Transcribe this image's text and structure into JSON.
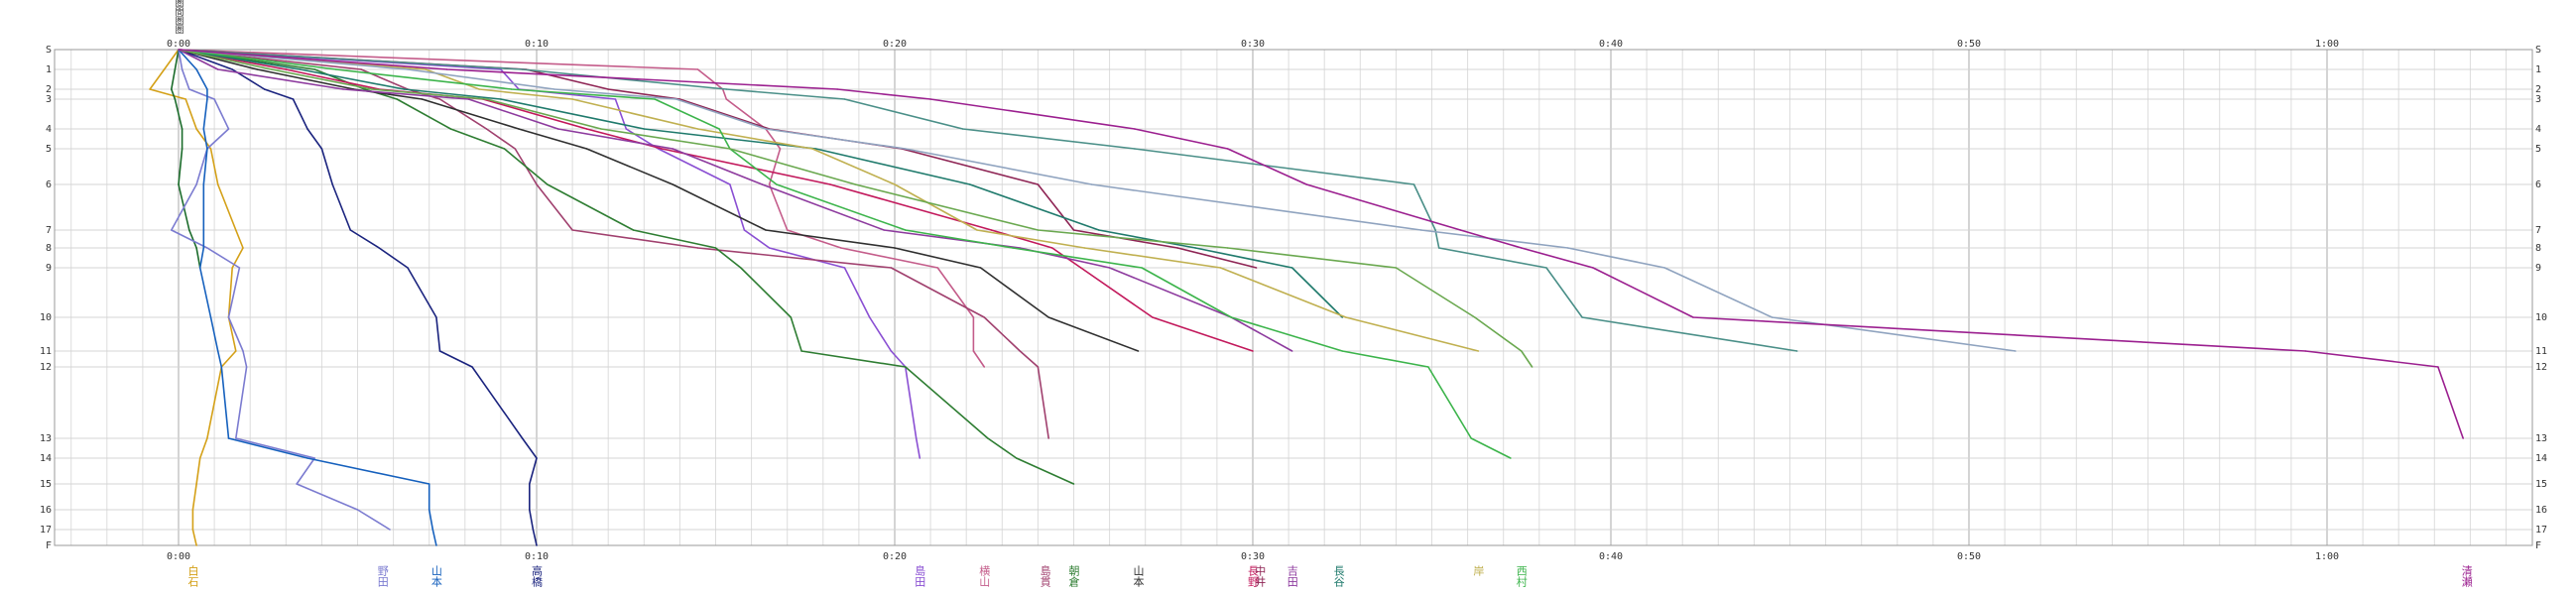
{
  "top_legend": [
    "圏",
    "間",
    "圏",
    "圏"
  ],
  "chart_data": {
    "type": "line",
    "title": "",
    "xlabel": "",
    "ylabel": "",
    "x_unit": "elapsed minutes",
    "xlim": [
      0,
      66
    ],
    "x_ticks": [
      {
        "value": 0,
        "label": "0:00"
      },
      {
        "value": 10,
        "label": "0:10"
      },
      {
        "value": 20,
        "label": "0:20"
      },
      {
        "value": 30,
        "label": "0:30"
      },
      {
        "value": 40,
        "label": "0:40"
      },
      {
        "value": 50,
        "label": "0:50"
      },
      {
        "value": 60,
        "label": "1:00"
      }
    ],
    "y_ticks": [
      "S",
      "1",
      "2",
      "3",
      "4",
      "5",
      "6",
      "7",
      "8",
      "9",
      "10",
      "11",
      "12",
      "13",
      "14",
      "15",
      "16",
      "17",
      "F"
    ],
    "y_tick_positions": [
      0,
      1,
      2,
      2.5,
      4,
      5,
      6.8,
      9.1,
      10,
      11,
      13.5,
      15.2,
      16,
      19.6,
      20.6,
      21.9,
      23.2,
      24.2,
      25
    ],
    "grid": true,
    "series": [
      {
        "name": "白石",
        "color": "#d4a017",
        "x": [
          0,
          -0.4,
          -0.8,
          0.2,
          0.5,
          0.9,
          1.1,
          1.6,
          1.8,
          1.5,
          1.4,
          1.6,
          1.2,
          0.8,
          0.6,
          0.5,
          0.4,
          0.4,
          0.5
        ]
      },
      {
        "name": "",
        "color": "#1a6b2a",
        "x": [
          0,
          -0.1,
          -0.2,
          -0.1,
          0.1,
          0.1,
          0.0,
          0.3,
          0.5,
          0.6
        ]
      },
      {
        "name": "野田",
        "color": "#7b7bd0",
        "x": [
          0,
          0.1,
          0.3,
          1.0,
          1.4,
          0.8,
          0.5,
          -0.2,
          0.8,
          1.7,
          1.4,
          1.8,
          1.9,
          1.6,
          3.8,
          3.3,
          5.0,
          5.9
        ]
      },
      {
        "name": "山本",
        "color": "#1560bd",
        "x": [
          0,
          0.5,
          0.8,
          0.8,
          0.7,
          0.8,
          0.7,
          0.7,
          0.7,
          0.6,
          0.9,
          1.1,
          1.2,
          1.4,
          3.6,
          7.0,
          7.0,
          7.1,
          7.2
        ]
      },
      {
        "name": "高橋",
        "color": "#1a237e",
        "x": [
          0,
          1.5,
          2.4,
          3.2,
          3.6,
          4.0,
          4.3,
          4.8,
          5.6,
          6.4,
          7.2,
          7.3,
          8.2,
          9.6,
          10.0,
          9.8,
          9.8,
          9.9,
          10.0
        ]
      },
      {
        "name": "島田",
        "color": "#8a4fd3",
        "x": [
          0,
          9.0,
          9.5,
          12.2,
          12.5,
          13.4,
          15.4,
          15.8,
          16.5,
          18.6,
          19.3,
          19.9,
          20.3,
          20.6,
          20.7
        ]
      },
      {
        "name": "横山",
        "color": "#c45c8a",
        "x": [
          0,
          14.5,
          15.2,
          15.3,
          16.4,
          16.8,
          16.5,
          17.0,
          18.5,
          21.2,
          22.2,
          22.2,
          22.5
        ]
      },
      {
        "name": "島貫",
        "color": "#a0406e",
        "x": [
          0,
          5.1,
          6.4,
          7.3,
          8.6,
          9.4,
          10.0,
          11.0,
          14.5,
          19.9,
          22.5,
          23.5,
          24.0,
          24.3
        ]
      },
      {
        "name": "朝倉",
        "color": "#2e7d32",
        "x": [
          0,
          3.8,
          5.2,
          6.1,
          7.6,
          9.1,
          10.3,
          12.7,
          15.0,
          15.7,
          17.1,
          17.4,
          20.3,
          22.6,
          23.4,
          25.0
        ]
      },
      {
        "name": "山本",
        "color": "#2f2f2f",
        "x": [
          0,
          2.2,
          4.9,
          6.8,
          9.5,
          11.4,
          13.8,
          16.4,
          20.0,
          22.4,
          24.3,
          26.8
        ]
      },
      {
        "name": "中井",
        "color": "#8e2454",
        "x": [
          0,
          9.7,
          12.0,
          14.0,
          16.5,
          20.2,
          24.0,
          25.0,
          27.9,
          30.1
        ]
      },
      {
        "name": "長野",
        "color": "#c2185b",
        "x": [
          0,
          3.0,
          5.6,
          8.5,
          11.4,
          13.5,
          18.2,
          22.7,
          24.4,
          25.2,
          27.2,
          30.0
        ]
      },
      {
        "name": "吉田",
        "color": "#8d3a9e",
        "x": [
          0,
          1.1,
          4.6,
          8.1,
          10.6,
          13.8,
          16.3,
          19.7,
          23.5,
          26.0,
          29.4,
          31.1
        ]
      },
      {
        "name": "長谷",
        "color": "#1f7a6c",
        "x": [
          0,
          3.4,
          6.3,
          9.0,
          13.0,
          17.8,
          22.1,
          25.7,
          28.4,
          31.1,
          32.5
        ]
      },
      {
        "name": "岸",
        "color": "#c0b050",
        "x": [
          0,
          6.9,
          8.4,
          11.0,
          14.5,
          17.7,
          20.0,
          22.3,
          25.3,
          29.1,
          32.6,
          36.3
        ]
      },
      {
        "name": "西村",
        "color": "#3cb44b",
        "x": [
          0,
          4.4,
          9.3,
          13.3,
          15.1,
          15.4,
          16.7,
          20.3,
          23.3,
          26.9,
          29.4,
          32.5,
          34.9,
          36.1,
          37.2
        ]
      },
      {
        "name": "",
        "color": "#6aa84f",
        "x": [
          0,
          2.6,
          5.4,
          8.6,
          11.8,
          15.4,
          18.9,
          24.0,
          29.3,
          34.0,
          36.2,
          37.5,
          37.8
        ]
      },
      {
        "name": "",
        "color": "#4a8f88",
        "x": [
          0,
          9.6,
          15.3,
          18.6,
          21.9,
          26.7,
          34.5,
          35.1,
          35.2,
          38.2,
          39.2,
          45.2
        ]
      },
      {
        "name": "",
        "color": "#8fa3bf",
        "x": [
          0,
          6.4,
          10.5,
          13.9,
          16.4,
          20.3,
          25.5,
          34.7,
          38.8,
          41.5,
          44.5,
          51.3
        ]
      },
      {
        "name": "清瀬",
        "color": "#9b1f8f",
        "x": [
          0,
          7.5,
          18.4,
          21.0,
          26.7,
          29.3,
          31.5,
          35.8,
          37.5,
          39.5,
          42.3,
          59.4,
          63.1,
          63.8
        ]
      }
    ],
    "bottom_labels": [
      {
        "x": 0.4,
        "text": "白石",
        "color": "#d4a017"
      },
      {
        "x": 5.7,
        "text": "野田",
        "color": "#7b7bd0"
      },
      {
        "x": 7.2,
        "text": "山本",
        "color": "#1560bd"
      },
      {
        "x": 10.0,
        "text": "高橋",
        "color": "#1a237e"
      },
      {
        "x": 20.7,
        "text": "島田",
        "color": "#8a4fd3"
      },
      {
        "x": 22.5,
        "text": "横山",
        "color": "#c45c8a"
      },
      {
        "x": 24.2,
        "text": "島貫",
        "color": "#a0406e"
      },
      {
        "x": 25.0,
        "text": "朝倉",
        "color": "#2e7d32"
      },
      {
        "x": 26.8,
        "text": "山本",
        "color": "#2f2f2f"
      },
      {
        "x": 30.0,
        "text": "長野",
        "color": "#c2185b"
      },
      {
        "x": 30.2,
        "text": "中井",
        "color": "#8e2454"
      },
      {
        "x": 31.1,
        "text": "吉田",
        "color": "#8d3a9e"
      },
      {
        "x": 32.4,
        "text": "長谷",
        "color": "#1f7a6c"
      },
      {
        "x": 36.3,
        "text": "岸",
        "color": "#c0b050"
      },
      {
        "x": 37.5,
        "text": "西村",
        "color": "#3cb44b"
      },
      {
        "x": 50.8,
        "text": "",
        "color": "#8fa3bf"
      },
      {
        "x": 63.9,
        "text": "清瀬",
        "color": "#9b1f8f"
      }
    ]
  }
}
